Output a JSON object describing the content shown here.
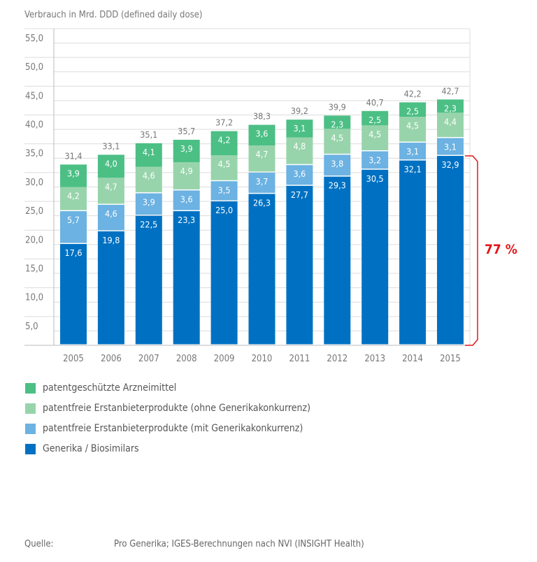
{
  "chart_data": {
    "type": "bar",
    "stacked": true,
    "ylabel": "Verbrauch in Mrd. DDD (defined daily dose)",
    "ylim": [
      0,
      55
    ],
    "yticks": [
      "5,0",
      "10,0",
      "15,0",
      "20,0",
      "25,0",
      "30,0",
      "35,0",
      "40,0",
      "45,0",
      "50,0",
      "55,0"
    ],
    "grid": true,
    "categories": [
      "2005",
      "2006",
      "2007",
      "2008",
      "2009",
      "2010",
      "2011",
      "2012",
      "2013",
      "2014",
      "2015"
    ],
    "series": [
      {
        "name": "Generika / Biosimilars",
        "color": "#0071c2",
        "values": [
          17.6,
          19.8,
          22.5,
          23.3,
          25.0,
          26.3,
          27.7,
          29.3,
          30.5,
          32.1,
          32.9
        ]
      },
      {
        "name": "patentfreie Erstanbieterprodukte (mit Generikakonkurrenz)",
        "color": "#6cb2e2",
        "values": [
          5.7,
          4.6,
          3.9,
          3.6,
          3.5,
          3.7,
          3.6,
          3.8,
          3.2,
          3.1,
          3.1
        ]
      },
      {
        "name": "patentfreie Erstanbieterprodukte (ohne Generikakonkurrenz)",
        "color": "#98d4ab",
        "values": [
          4.2,
          4.7,
          4.6,
          4.9,
          4.5,
          4.7,
          4.8,
          4.5,
          4.5,
          4.5,
          4.4
        ]
      },
      {
        "name": "patentgeschützte Arzneimittel",
        "color": "#4cbf85",
        "values": [
          3.9,
          4.0,
          4.1,
          3.9,
          4.2,
          3.6,
          3.1,
          2.3,
          2.5,
          2.5,
          2.3
        ]
      }
    ],
    "totals": [
      "31,4",
      "33,1",
      "35,1",
      "35,7",
      "37,2",
      "38,3",
      "39,2",
      "39,9",
      "40,7",
      "42,2",
      "42,7"
    ],
    "annotation": {
      "text": "77 %",
      "color": "#e3161b"
    },
    "legend_placement": "bottom"
  },
  "source": {
    "label": "Quelle:",
    "text": "Pro Generika; IGES-Berechnungen nach NVI (INSIGHT Health)"
  }
}
